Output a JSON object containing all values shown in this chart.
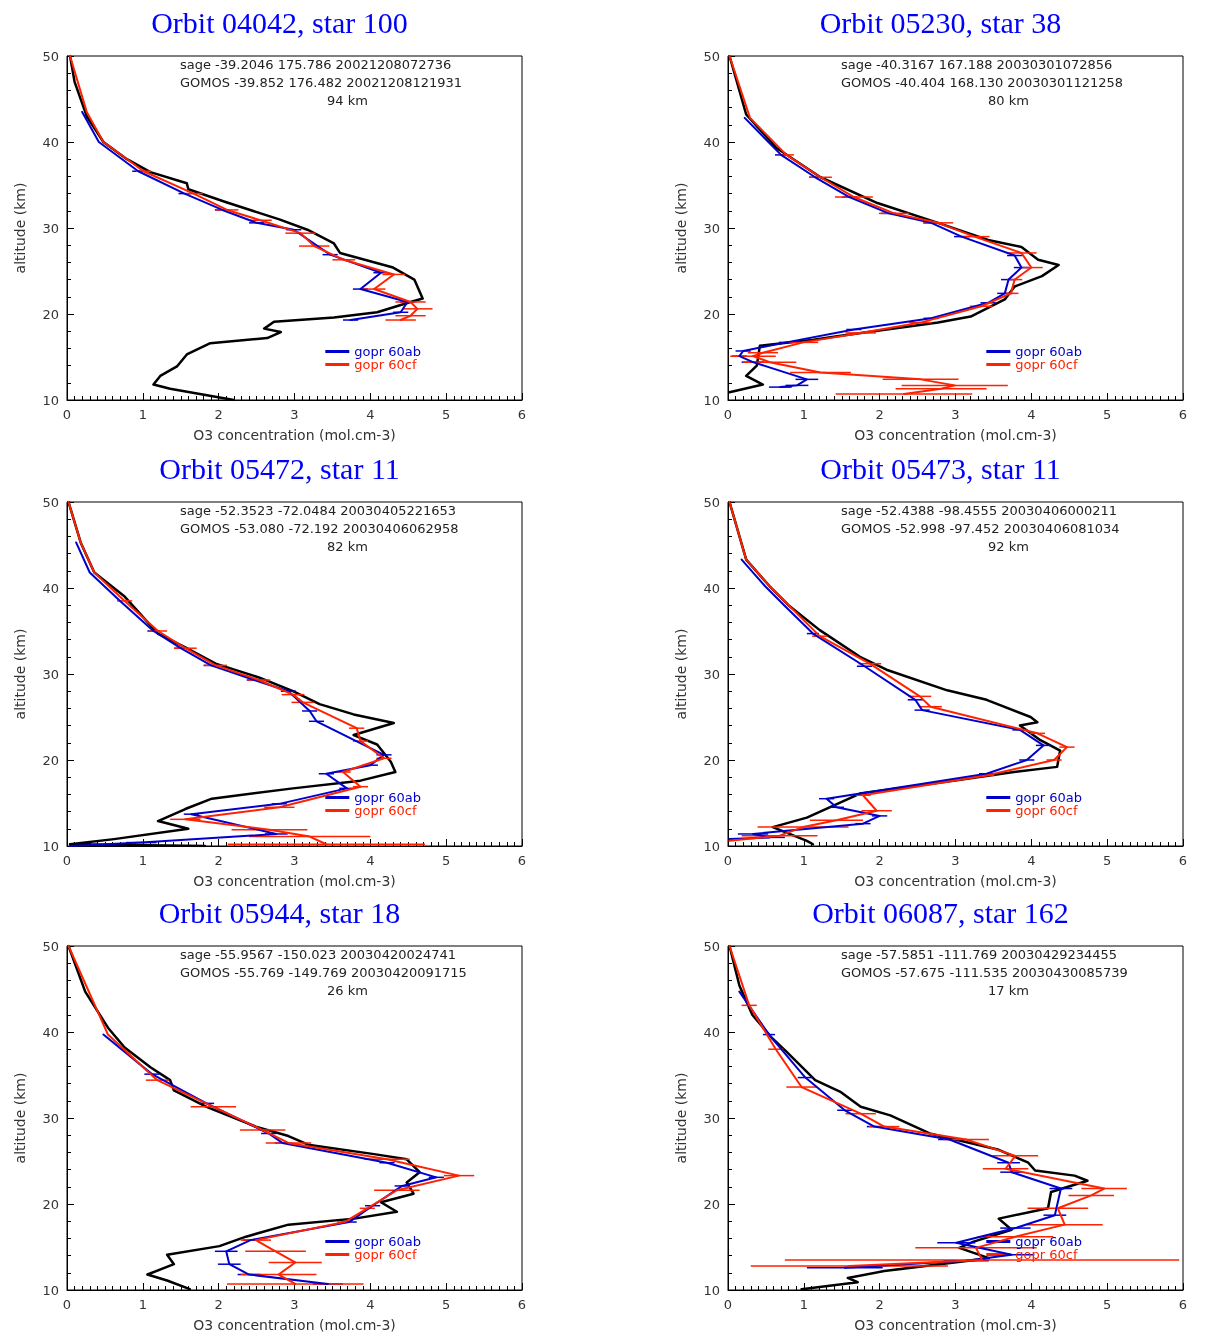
{
  "chart_data": [
    {
      "type": "line",
      "title": "Orbit 04042, star 100",
      "xlabel": "O3 concentration (mol.cm-3)",
      "ylabel": "altitude (km)",
      "xlim": [
        0,
        6
      ],
      "ylim": [
        10,
        50
      ],
      "xticks": [
        0,
        1,
        2,
        3,
        4,
        5,
        6
      ],
      "yticks": [
        10,
        20,
        30,
        40,
        50
      ],
      "marker": "none",
      "legend": "bottom right",
      "annotations": [
        "sage -39.2046 175.786 20021208072736",
        "GOMOS -39.852 176.482 20021208121931",
        "94 km"
      ],
      "series": [
        {
          "color": "#000000",
          "x": [
            0.04,
            0.1,
            0.26,
            0.48,
            0.79,
            1.1,
            1.58,
            1.6,
            2.1,
            2.8,
            3.17,
            3.52,
            3.6,
            4.3,
            4.58,
            4.69,
            4.53,
            4.09,
            3.52,
            2.73,
            2.6,
            2.82,
            2.64,
            1.89,
            1.58,
            1.45,
            1.23,
            1.14,
            1.36,
            2.2
          ],
          "values": [
            50,
            47,
            43,
            40,
            38,
            36.5,
            35.2,
            34.5,
            33,
            31,
            29.8,
            28.2,
            27.1,
            25.4,
            24,
            21.8,
            21.4,
            20.2,
            19.6,
            19.1,
            18.3,
            17.9,
            17.2,
            16.6,
            15.3,
            13.9,
            12.8,
            11.8,
            11.3,
            10
          ]
        },
        {
          "name": "gopr 60ab",
          "color": "#0000cc",
          "x": [
            0.2,
            0.42,
            0.94,
            1.55,
            2.05,
            2.5,
            2.99,
            3.47,
            4.14,
            3.87,
            4.49,
            4.4,
            3.74
          ],
          "values": [
            43.5,
            40,
            36.6,
            34,
            32.1,
            30.6,
            29.8,
            26.9,
            24.8,
            22.9,
            21.4,
            20.2,
            19.3
          ],
          "xerrors": [
            null,
            null,
            0.08,
            0.08,
            0.1,
            0.1,
            0.1,
            0.1,
            0.1,
            0.1,
            0.1,
            0.1,
            0.1
          ]
        },
        {
          "name": "gopr 60cf",
          "color": "#ff2200",
          "x": [
            0.04,
            0.26,
            0.48,
            1.01,
            1.67,
            2.11,
            2.55,
            3.08,
            3.26,
            3.65,
            4.31,
            4.05,
            4.53,
            4.62,
            4.53,
            4.4
          ],
          "values": [
            50,
            43.5,
            40,
            36.6,
            34,
            32.1,
            30.9,
            29.4,
            27.9,
            26.3,
            24.6,
            22.9,
            21.4,
            20.6,
            19.8,
            19.3
          ],
          "xerrors": [
            null,
            null,
            null,
            0.1,
            0.12,
            0.15,
            0.15,
            0.2,
            0.2,
            0.15,
            0.15,
            0.15,
            0.2,
            0.2,
            0.2,
            0.2
          ]
        }
      ]
    },
    {
      "type": "line",
      "title": "Orbit 05230, star 38",
      "xlabel": "O3 concentration (mol.cm-3)",
      "ylabel": "altitude (km)",
      "xlim": [
        0,
        6
      ],
      "ylim": [
        10,
        50
      ],
      "xticks": [
        0,
        1,
        2,
        3,
        4,
        5,
        6
      ],
      "yticks": [
        10,
        20,
        30,
        40,
        50
      ],
      "marker": "none",
      "legend": "bottom right",
      "annotations": [
        "sage -40.3167 167.188 20030301072856",
        "GOMOS -40.404 168.130 20030301121258",
        "80 km"
      ],
      "series": [
        {
          "color": "#000000",
          "x": [
            0.02,
            0.24,
            0.64,
            1.22,
            1.97,
            2.77,
            3.43,
            3.87,
            4.09,
            4.36,
            4.14,
            3.78,
            3.65,
            3.2,
            2.77,
            1.44,
            1.13,
            0.42,
            0.38,
            0.24,
            0.46,
            0.02
          ],
          "values": [
            50,
            43.2,
            39.3,
            35.9,
            32.9,
            30.6,
            28.6,
            27.8,
            26.3,
            25.7,
            24.4,
            23.2,
            21.7,
            19.7,
            19,
            17.4,
            17,
            16.3,
            14,
            12.8,
            11.8,
            10.9
          ]
        },
        {
          "name": "gopr 60ab",
          "color": "#0000cc",
          "x": [
            0.22,
            0.7,
            1.15,
            1.6,
            2.12,
            2.68,
            3.08,
            3.78,
            3.87,
            3.7,
            3.65,
            3.43,
            2.68,
            1.66,
            0.77,
            0.2,
            0.15,
            0.33,
            1.04,
            0.91,
            0.69
          ],
          "values": [
            42.8,
            38.5,
            35.9,
            33.6,
            31.7,
            30.6,
            29,
            26.8,
            25.4,
            24,
            22.4,
            21.3,
            19.5,
            18.2,
            16.7,
            15.7,
            15.1,
            14.4,
            12.4,
            11.7,
            11.5
          ],
          "xerrors": [
            null,
            0.08,
            0.08,
            0.1,
            0.1,
            0.1,
            0.1,
            0.1,
            0.1,
            0.1,
            0.1,
            0.1,
            0.1,
            0.1,
            0.1,
            0.1,
            0.1,
            0.15,
            0.15,
            0.15,
            0.15
          ]
        },
        {
          "name": "gopr 60cf",
          "color": "#ff2200",
          "x": [
            0.02,
            0.29,
            0.77,
            1.22,
            1.66,
            2.19,
            2.77,
            3.25,
            3.87,
            4.0,
            3.78,
            3.73,
            3.34,
            2.54,
            1.75,
            0.99,
            0.46,
            0.33,
            0.55,
            1.22,
            2.54,
            2.99,
            2.81,
            2.32
          ],
          "values": [
            50,
            42.8,
            38.5,
            35.9,
            33.6,
            31.7,
            30.6,
            29,
            27.1,
            25.4,
            24,
            22.4,
            20.9,
            19,
            17.8,
            16.7,
            15.5,
            15.1,
            14.4,
            13.2,
            12.4,
            11.7,
            11.3,
            10.7
          ],
          "xerrors": [
            null,
            null,
            0.1,
            0.15,
            0.25,
            0.2,
            0.2,
            0.2,
            0.2,
            0.15,
            0.1,
            0.1,
            0.15,
            0.15,
            0.2,
            0.2,
            0.2,
            0.3,
            0.35,
            0.4,
            0.5,
            0.7,
            0.6,
            0.9
          ]
        }
      ]
    },
    {
      "type": "line",
      "title": "Orbit 05472, star 11",
      "xlabel": "O3 concentration (mol.cm-3)",
      "ylabel": "altitude (km)",
      "xlim": [
        0,
        6
      ],
      "ylim": [
        10,
        50
      ],
      "xticks": [
        0,
        1,
        2,
        3,
        4,
        5,
        6
      ],
      "yticks": [
        10,
        20,
        30,
        40,
        50
      ],
      "marker": "none",
      "legend": "bottom right",
      "annotations": [
        "sage -52.3523 -72.0484 20030405221653",
        "GOMOS -53.080 -72.192 20030406062958",
        "82 km"
      ],
      "series": [
        {
          "color": "#000000",
          "x": [
            0.02,
            0.18,
            0.36,
            0.76,
            1.2,
            1.56,
            1.96,
            2.53,
            2.98,
            3.33,
            3.78,
            4.31,
            3.78,
            4.09,
            4.27,
            4.33,
            3.87,
            2.98,
            1.91,
            1.56,
            1.2,
            1.6,
            0.62,
            0.04,
            1.82
          ],
          "values": [
            50,
            45.3,
            41.8,
            39,
            34.7,
            33.1,
            31.2,
            29.6,
            28,
            26.5,
            25.3,
            24.3,
            22.9,
            21.8,
            19.8,
            18.6,
            17.6,
            16.7,
            15.5,
            14.3,
            12.9,
            12,
            10.8,
            10.2,
            10
          ]
        },
        {
          "name": "gopr 60ab",
          "color": "#0000cc",
          "x": [
            0.12,
            0.3,
            0.7,
            1.14,
            1.5,
            1.9,
            2.47,
            2.92,
            3.2,
            3.29,
            4.18,
            4.0,
            3.42,
            3.69,
            2.8,
            1.64,
            2.76,
            0.98,
            0.04
          ],
          "values": [
            45.3,
            41.8,
            38.5,
            35,
            33,
            31,
            29.3,
            28,
            25.7,
            24.5,
            20.6,
            19.4,
            18.4,
            16.7,
            14.9,
            13.7,
            11.4,
            10.4,
            10
          ],
          "xerrors": [
            null,
            null,
            null,
            0.08,
            0.08,
            0.1,
            0.1,
            0.1,
            0.1,
            0.1,
            0.1,
            0.1,
            0.1,
            0.1,
            0.1,
            0.1,
            0.15,
            0.2,
            null
          ]
        },
        {
          "name": "gopr 60cf",
          "color": "#ff2200",
          "x": [
            0.02,
            0.18,
            0.36,
            0.76,
            1.2,
            1.56,
            1.96,
            2.53,
            2.98,
            3.11,
            3.82,
            3.87,
            4.18,
            3.64,
            3.87,
            2.8,
            1.56,
            2.67,
            3.2,
            3.42
          ],
          "values": [
            50,
            45.3,
            41.8,
            38.5,
            35,
            33,
            31,
            29.3,
            27.6,
            26.7,
            23.7,
            22.2,
            20.2,
            18.6,
            16.9,
            14.5,
            13.1,
            11.9,
            11.1,
            10.2
          ],
          "xerrors": [
            null,
            null,
            null,
            0.1,
            0.12,
            0.15,
            0.15,
            0.15,
            0.15,
            0.15,
            0.1,
            0.1,
            0.1,
            0.1,
            0.1,
            0.2,
            0.2,
            0.5,
            0.8,
            1.3
          ]
        }
      ]
    },
    {
      "type": "line",
      "title": "Orbit 05473, star 11",
      "xlabel": "O3 concentration (mol.cm-3)",
      "ylabel": "altitude (km)",
      "xlim": [
        0,
        6
      ],
      "ylim": [
        10,
        50
      ],
      "xticks": [
        0,
        1,
        2,
        3,
        4,
        5,
        6
      ],
      "yticks": [
        10,
        20,
        30,
        40,
        50
      ],
      "marker": "none",
      "legend": "bottom right",
      "annotations": [
        "sage -52.4388 -98.4555 20030406000211",
        "GOMOS -52.998 -97.452 20030406081034",
        "92 km"
      ],
      "series": [
        {
          "color": "#000000",
          "x": [
            0.02,
            0.24,
            0.55,
            0.81,
            1.21,
            1.74,
            2.09,
            2.89,
            3.41,
            3.99,
            4.08,
            3.85,
            4.12,
            4.38,
            4.34,
            3.77,
            2.97,
            1.74,
            1.34,
            1.04,
            0.59,
            1.04,
            1.12
          ],
          "values": [
            50,
            43.3,
            40.2,
            37.9,
            35.1,
            32,
            30.5,
            28.1,
            27,
            25,
            24.4,
            24,
            22.3,
            21.1,
            19.2,
            18.6,
            17.6,
            16.1,
            14.5,
            13.3,
            12.2,
            10.6,
            10.2
          ]
        },
        {
          "name": "gopr 60ab",
          "color": "#0000cc",
          "x": [
            0.18,
            0.49,
            0.75,
            1.12,
            1.8,
            2.47,
            2.56,
            3.85,
            4.16,
            3.94,
            3.41,
            1.3,
            1.43,
            2.0,
            1.78,
            0.33,
            0.55,
            0.02
          ],
          "values": [
            43.3,
            40.2,
            37.9,
            34.7,
            30.9,
            27,
            25.8,
            23.5,
            21.7,
            20,
            18.4,
            15.5,
            14.5,
            13.5,
            12.6,
            11.4,
            11,
            10.8
          ],
          "xerrors": [
            null,
            null,
            null,
            0.08,
            0.1,
            0.1,
            0.1,
            0.1,
            0.1,
            0.1,
            0.1,
            0.1,
            0.1,
            0.1,
            0.1,
            0.2,
            0.2,
            null
          ]
        },
        {
          "name": "gopr 60cf",
          "color": "#ff2200",
          "x": [
            0.02,
            0.24,
            0.55,
            0.81,
            1.21,
            1.87,
            2.53,
            2.67,
            4.08,
            4.47,
            4.3,
            3.41,
            1.78,
            1.96,
            1.43,
            0.99,
            0.68,
            0.02
          ],
          "values": [
            50,
            43.3,
            40.2,
            37.9,
            34.4,
            31.2,
            27.4,
            26.2,
            23.1,
            21.5,
            20,
            18.2,
            15.9,
            14.1,
            13,
            12.2,
            11.2,
            10.6
          ],
          "xerrors": [
            null,
            null,
            null,
            null,
            0.1,
            0.15,
            0.15,
            0.15,
            0.1,
            0.1,
            0.1,
            0.1,
            0.1,
            0.2,
            0.35,
            0.6,
            0.5,
            null
          ]
        }
      ]
    },
    {
      "type": "line",
      "title": "Orbit 05944, star 18",
      "xlabel": "O3 concentration (mol.cm-3)",
      "ylabel": "altitude (km)",
      "xlim": [
        0,
        6
      ],
      "ylim": [
        10,
        50
      ],
      "xticks": [
        0,
        1,
        2,
        3,
        4,
        5,
        6
      ],
      "yticks": [
        10,
        20,
        30,
        40,
        50
      ],
      "marker": "none",
      "legend": "bottom right",
      "annotations": [
        "sage -55.9567 -150.023 20030420024741",
        "GOMOS -55.769 -149.769 20030420091715",
        "26 km"
      ],
      "series": [
        {
          "color": "#000000",
          "x": [
            0.02,
            0.24,
            0.54,
            0.76,
            1.1,
            1.36,
            1.41,
            1.84,
            2.49,
            2.92,
            3.18,
            4.05,
            4.48,
            4.65,
            4.48,
            4.57,
            4.14,
            4.35,
            3.79,
            2.92,
            2.36,
            2.01,
            1.32,
            1.41,
            1.06,
            1.32,
            1.62
          ],
          "values": [
            50,
            44.7,
            40.5,
            38.2,
            35.9,
            34.4,
            33.2,
            31.3,
            29,
            27.9,
            26.9,
            25.8,
            25.2,
            23.7,
            22.5,
            21.2,
            20.2,
            19.1,
            18.3,
            17.6,
            16.2,
            15.1,
            14.1,
            13,
            11.8,
            11.1,
            10.1
          ]
        },
        {
          "name": "gopr 60ab",
          "color": "#0000cc",
          "x": [
            0.48,
            1.12,
            1.84,
            2.66,
            2.84,
            4.22,
            4.87,
            4.42,
            4.03,
            3.72,
            2.42,
            2.1,
            2.14,
            2.4,
            3.44
          ],
          "values": [
            39.7,
            35.1,
            31.7,
            28.2,
            27.1,
            24.8,
            23.1,
            22.1,
            19.8,
            17.9,
            15.8,
            14.5,
            13,
            11.8,
            10.7
          ],
          "xerrors": [
            null,
            0.1,
            0.1,
            0.1,
            0.1,
            0.1,
            0.1,
            0.1,
            0.1,
            0.1,
            0.1,
            0.15,
            0.15,
            0.15,
            0.2
          ]
        },
        {
          "name": "gopr 60cf",
          "color": "#ff2200",
          "x": [
            0.02,
            0.54,
            1.19,
            1.93,
            2.58,
            2.92,
            4.22,
            5.17,
            4.35,
            3.96,
            3.66,
            2.49,
            2.75,
            3.01,
            2.79,
            3.01
          ],
          "values": [
            50,
            39.7,
            34.4,
            31.3,
            28.6,
            27.1,
            25.2,
            23.3,
            21.6,
            19.5,
            17.9,
            15.8,
            14.5,
            13.2,
            11.8,
            10.7
          ],
          "xerrors": [
            null,
            null,
            0.15,
            0.3,
            0.3,
            0.3,
            0.3,
            0.2,
            0.3,
            0.1,
            0.1,
            0.2,
            0.4,
            0.35,
            0.5,
            0.9
          ]
        }
      ]
    },
    {
      "type": "line",
      "title": "Orbit 06087, star 162",
      "xlabel": "O3 concentration (mol.cm-3)",
      "ylabel": "altitude (km)",
      "xlim": [
        0,
        6
      ],
      "ylim": [
        10,
        50
      ],
      "xticks": [
        0,
        1,
        2,
        3,
        4,
        5,
        6
      ],
      "yticks": [
        10,
        20,
        30,
        40,
        50
      ],
      "marker": "none",
      "legend": "bottom right",
      "annotations": [
        "sage -57.5851 -111.769 20030429234455",
        "GOMOS -57.675 -111.535 20030430085739",
        "17 km"
      ],
      "series": [
        {
          "color": "#000000",
          "x": [
            0.02,
            0.15,
            0.32,
            0.58,
            0.76,
            1.15,
            1.49,
            1.75,
            2.14,
            2.66,
            3.57,
            3.96,
            4.05,
            4.57,
            4.74,
            4.26,
            4.22,
            3.57,
            3.74,
            3.23,
            3.05,
            3.44,
            2.06,
            1.58,
            1.71,
            0.97
          ],
          "values": [
            50,
            45.4,
            42,
            39.3,
            37.8,
            34.4,
            33,
            31.3,
            30.3,
            28.2,
            26.3,
            24.8,
            23.9,
            23.3,
            22.7,
            21.4,
            19.5,
            18.3,
            17,
            15.6,
            14.9,
            13.7,
            12.2,
            11.4,
            10.9,
            10.1
          ]
        },
        {
          "name": "gopr 60ab",
          "color": "#0000cc",
          "x": [
            0.15,
            0.54,
            1.02,
            1.54,
            1.93,
            2.92,
            3.7,
            3.74,
            4.39,
            4.31,
            3.79,
            3.01,
            3.74,
            3.14,
            1.54
          ],
          "values": [
            44.7,
            39.7,
            34.7,
            30.9,
            29,
            27.5,
            24.8,
            23.7,
            21.8,
            18.7,
            17.2,
            15.5,
            14.1,
            13.4,
            12.6
          ],
          "xerrors": [
            null,
            0.08,
            0.1,
            0.1,
            0.1,
            0.15,
            0.15,
            0.15,
            0.15,
            0.15,
            0.2,
            0.25,
            0.3,
            0.3,
            0.5
          ]
        },
        {
          "name": "gopr 60cf",
          "color": "#ff2200",
          "x": [
            0.02,
            0.28,
            0.63,
            0.97,
            1.75,
            2.06,
            3.14,
            3.79,
            3.66,
            4.96,
            4.79,
            4.35,
            4.44,
            3.79,
            3.27,
            3.35,
            1.6
          ],
          "values": [
            50,
            43.1,
            38,
            33.6,
            30.5,
            29,
            27.5,
            25.6,
            24.1,
            21.8,
            21,
            19.5,
            17.6,
            16.2,
            14.9,
            13.5,
            12.8
          ],
          "xerrors": [
            null,
            0.1,
            0.1,
            0.2,
            0.2,
            0.2,
            0.3,
            0.3,
            0.3,
            0.3,
            0.3,
            0.4,
            0.5,
            0.5,
            0.8,
            2.6,
            1.3
          ]
        }
      ]
    }
  ]
}
